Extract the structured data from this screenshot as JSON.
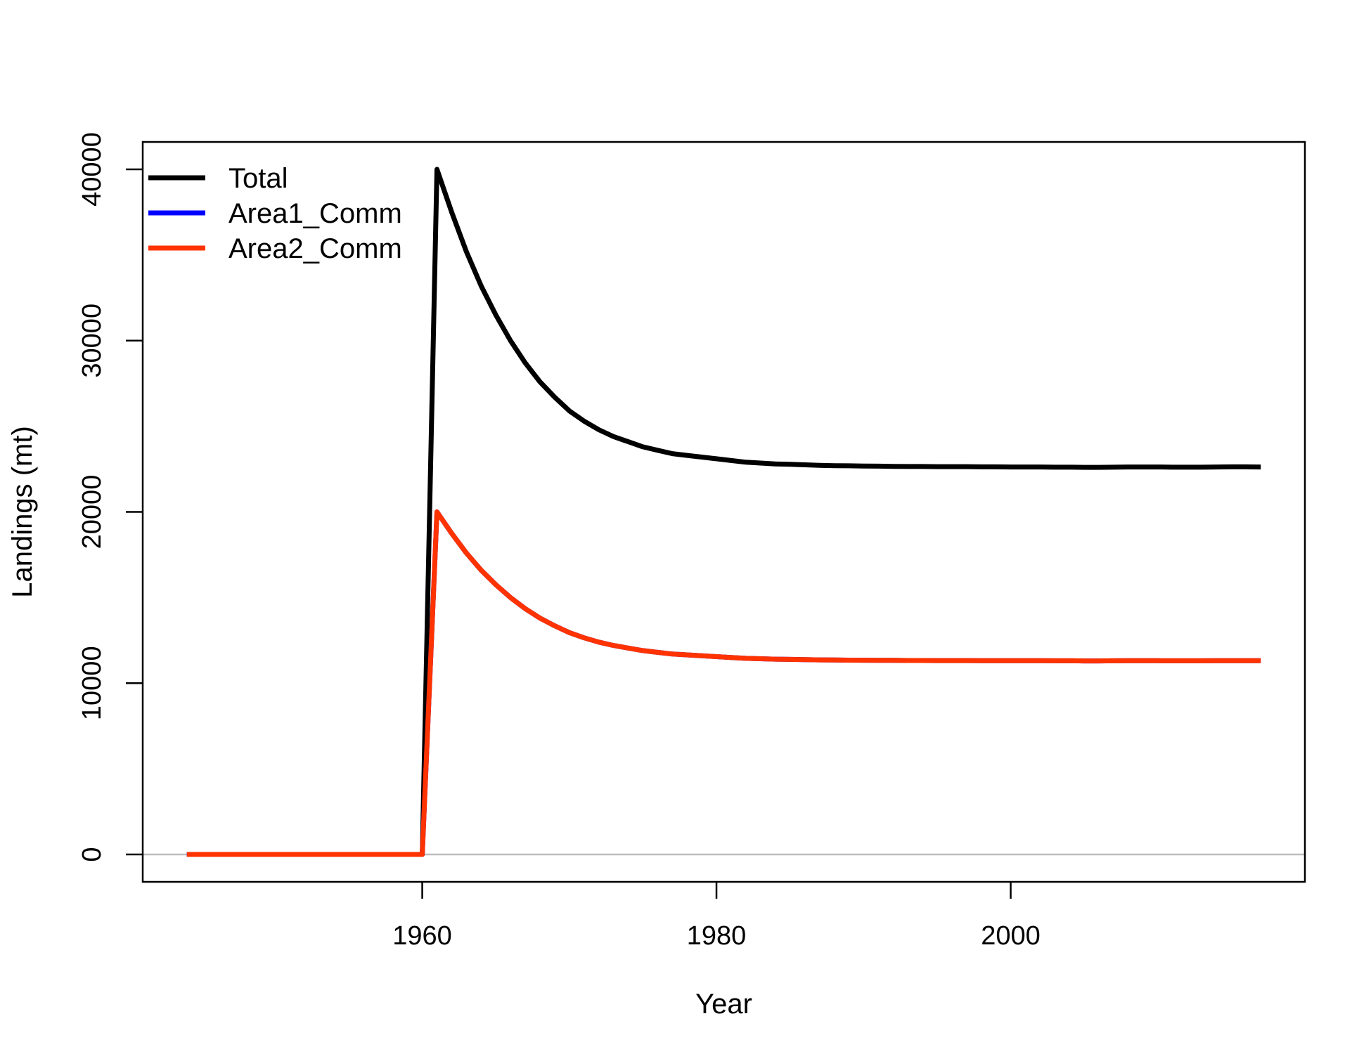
{
  "chart_data": {
    "type": "line",
    "xlabel": "Year",
    "ylabel": "Landings (mt)",
    "xlim": [
      1941,
      2020
    ],
    "ylim": [
      -1600,
      41600
    ],
    "xticks": [
      1960,
      1980,
      2000
    ],
    "yticks": [
      0,
      10000,
      20000,
      30000,
      40000
    ],
    "grid": false,
    "reference_line": {
      "y": 0,
      "color": "#bebebe"
    },
    "legend": {
      "position": "top-left"
    },
    "x": [
      1944,
      1945,
      1946,
      1947,
      1948,
      1949,
      1950,
      1951,
      1952,
      1953,
      1954,
      1955,
      1956,
      1957,
      1958,
      1959,
      1960,
      1961,
      1962,
      1963,
      1964,
      1965,
      1966,
      1967,
      1968,
      1969,
      1970,
      1971,
      1972,
      1973,
      1974,
      1975,
      1976,
      1977,
      1978,
      1979,
      1980,
      1981,
      1982,
      1983,
      1984,
      1985,
      1986,
      1987,
      1988,
      1989,
      1990,
      1991,
      1992,
      1993,
      1994,
      1995,
      1996,
      1997,
      1998,
      1999,
      2000,
      2001,
      2002,
      2003,
      2004,
      2005,
      2006,
      2007,
      2008,
      2009,
      2010,
      2011,
      2012,
      2013,
      2014,
      2015,
      2016,
      2017
    ],
    "series": [
      {
        "name": "Total",
        "color": "#000000",
        "values": [
          0,
          0,
          0,
          0,
          0,
          0,
          0,
          0,
          0,
          0,
          0,
          0,
          0,
          0,
          0,
          0,
          0,
          40000,
          37500,
          35200,
          33200,
          31500,
          30000,
          28700,
          27600,
          26700,
          25900,
          25300,
          24800,
          24400,
          24100,
          23800,
          23600,
          23400,
          23300,
          23200,
          23100,
          23000,
          22900,
          22850,
          22800,
          22780,
          22750,
          22720,
          22700,
          22690,
          22680,
          22670,
          22660,
          22650,
          22650,
          22640,
          22640,
          22640,
          22630,
          22630,
          22620,
          22620,
          22620,
          22610,
          22610,
          22600,
          22600,
          22610,
          22620,
          22620,
          22620,
          22610,
          22610,
          22610,
          22620,
          22630,
          22630,
          22620
        ]
      },
      {
        "name": "Area1_Comm",
        "color": "#0000ff",
        "values": [
          0,
          0,
          0,
          0,
          0,
          0,
          0,
          0,
          0,
          0,
          0,
          0,
          0,
          0,
          0,
          0,
          0,
          20000,
          18750,
          17600,
          16600,
          15750,
          15000,
          14350,
          13800,
          13350,
          12950,
          12650,
          12400,
          12200,
          12050,
          11900,
          11800,
          11700,
          11650,
          11600,
          11550,
          11500,
          11450,
          11425,
          11400,
          11390,
          11375,
          11360,
          11350,
          11345,
          11340,
          11335,
          11330,
          11325,
          11325,
          11320,
          11320,
          11320,
          11315,
          11315,
          11310,
          11310,
          11310,
          11305,
          11305,
          11300,
          11300,
          11305,
          11310,
          11310,
          11310,
          11305,
          11305,
          11305,
          11310,
          11315,
          11315,
          11310
        ]
      },
      {
        "name": "Area2_Comm",
        "color": "#ff3300",
        "values": [
          0,
          0,
          0,
          0,
          0,
          0,
          0,
          0,
          0,
          0,
          0,
          0,
          0,
          0,
          0,
          0,
          0,
          20000,
          18750,
          17600,
          16600,
          15750,
          15000,
          14350,
          13800,
          13350,
          12950,
          12650,
          12400,
          12200,
          12050,
          11900,
          11800,
          11700,
          11650,
          11600,
          11550,
          11500,
          11450,
          11425,
          11400,
          11390,
          11375,
          11360,
          11350,
          11345,
          11340,
          11335,
          11330,
          11325,
          11325,
          11320,
          11320,
          11320,
          11315,
          11315,
          11310,
          11310,
          11310,
          11305,
          11305,
          11300,
          11300,
          11305,
          11310,
          11310,
          11310,
          11305,
          11305,
          11305,
          11310,
          11315,
          11315,
          11310
        ]
      }
    ]
  }
}
